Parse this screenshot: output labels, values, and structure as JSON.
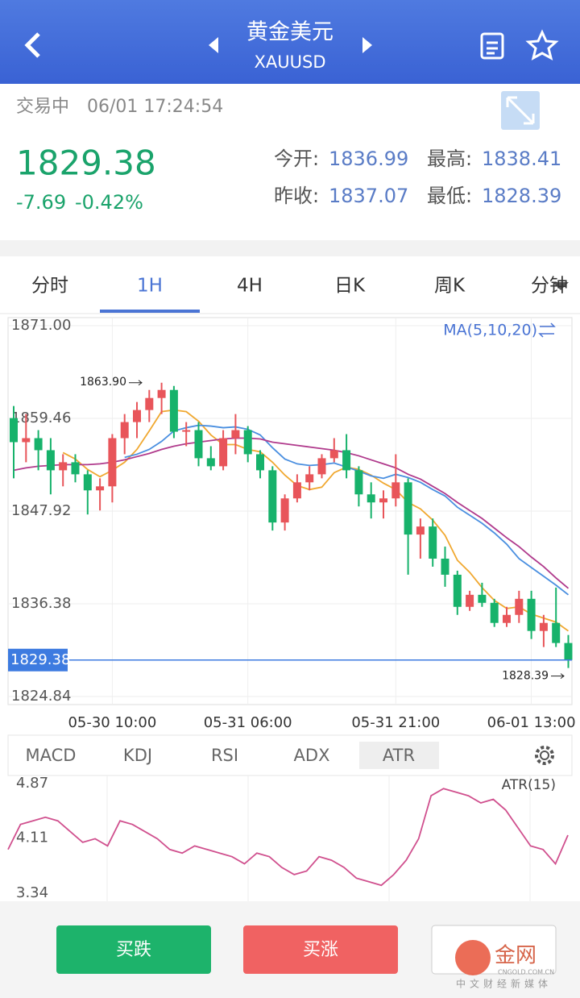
{
  "header": {
    "title": "黄金美元",
    "symbol": "XAUUSD"
  },
  "quote": {
    "status": "交易中",
    "time": "06/01 17:24:54",
    "price": 1829.38,
    "change": -7.69,
    "change_pct": "-0.42%",
    "open_label": "今开:",
    "open": 1836.99,
    "high_label": "最高:",
    "high": 1838.41,
    "prev_close_label": "昨收:",
    "prev_close": 1837.07,
    "low_label": "最低:",
    "low": 1828.39
  },
  "tabs": [
    "分时",
    "1H",
    "4H",
    "日K",
    "周K",
    "分钟"
  ],
  "indicator_tabs": [
    "MACD",
    "KDJ",
    "RSI",
    "ADX",
    "ATR"
  ],
  "chart_data": [
    {
      "type": "candlestick",
      "legend": "MA(5,10,20)",
      "categories": [
        null,
        null,
        null,
        null,
        null,
        null,
        null,
        null,
        "05-30 10:00",
        null,
        null,
        null,
        null,
        null,
        null,
        null,
        null,
        null,
        null,
        "05-31 06:00",
        null,
        null,
        null,
        null,
        null,
        null,
        null,
        null,
        null,
        null,
        null,
        "05-31 21:00",
        null,
        null,
        null,
        null,
        null,
        null,
        null,
        null,
        null,
        null,
        "06-01 13:00",
        null,
        null,
        null
      ],
      "ohlc": [
        [
          1859.5,
          1861,
          1852,
          1856.5
        ],
        [
          1856.5,
          1860,
          1854,
          1857
        ],
        [
          1857,
          1858,
          1853,
          1855.5
        ],
        [
          1855.5,
          1857,
          1850,
          1853
        ],
        [
          1853,
          1855,
          1851,
          1854
        ],
        [
          1854,
          1855,
          1851.5,
          1852.5
        ],
        [
          1852.5,
          1853,
          1847.5,
          1850.5
        ],
        [
          1850.5,
          1852,
          1848,
          1851
        ],
        [
          1851,
          1857.5,
          1849,
          1857
        ],
        [
          1857,
          1860,
          1855,
          1859
        ],
        [
          1859,
          1861.5,
          1857,
          1860.5
        ],
        [
          1860.5,
          1863,
          1859,
          1862
        ],
        [
          1862,
          1863.9,
          1860,
          1863
        ],
        [
          1863,
          1863.5,
          1857,
          1857.8
        ],
        [
          1857.8,
          1859,
          1856,
          1858
        ],
        [
          1858,
          1859,
          1853.5,
          1854.5
        ],
        [
          1854.5,
          1856,
          1853,
          1853.5
        ],
        [
          1853.5,
          1858,
          1853,
          1857
        ],
        [
          1857,
          1860,
          1855,
          1858
        ],
        [
          1858,
          1858.5,
          1854,
          1855
        ],
        [
          1855,
          1855.5,
          1852,
          1853
        ],
        [
          1853,
          1853.5,
          1845.5,
          1846.5
        ],
        [
          1846.5,
          1850,
          1845.5,
          1849.5
        ],
        [
          1849.5,
          1852.5,
          1849,
          1851.5
        ],
        [
          1851.5,
          1853.5,
          1850.5,
          1852.5
        ],
        [
          1852.5,
          1855,
          1852,
          1854.5
        ],
        [
          1854.5,
          1857,
          1854,
          1855.5
        ],
        [
          1855.5,
          1857.5,
          1852,
          1853
        ],
        [
          1853,
          1853.5,
          1848.5,
          1850
        ],
        [
          1850,
          1851.5,
          1847,
          1849
        ],
        [
          1849,
          1850.5,
          1847,
          1849.5
        ],
        [
          1849.5,
          1855,
          1848.5,
          1851.5
        ],
        [
          1851.5,
          1852,
          1840,
          1845
        ],
        [
          1845,
          1847,
          1842,
          1846
        ],
        [
          1846,
          1847,
          1841,
          1842
        ],
        [
          1842,
          1843.5,
          1838.5,
          1840
        ],
        [
          1840,
          1840.5,
          1835,
          1836
        ],
        [
          1836,
          1838,
          1835.5,
          1837.5
        ],
        [
          1837.5,
          1839,
          1836,
          1836.5
        ],
        [
          1836.5,
          1837,
          1833.5,
          1834
        ],
        [
          1834,
          1836,
          1833.5,
          1835
        ],
        [
          1835,
          1838,
          1834,
          1837
        ],
        [
          1837,
          1838,
          1832,
          1833
        ],
        [
          1833,
          1835,
          1831,
          1834
        ],
        [
          1834,
          1838.4,
          1831,
          1831.5
        ],
        [
          1831.5,
          1832.5,
          1828.39,
          1829.38
        ]
      ],
      "up_color": "#e8555a",
      "down_color": "#17b26b",
      "series": [
        {
          "color": "#f0a830",
          "values": [
            null,
            null,
            null,
            null,
            1855.2,
            1854.4,
            1853.1,
            1852.2,
            1853,
            1854,
            1855.6,
            1857.9,
            1860.3,
            1860.5,
            1860.3,
            1859.1,
            1857.4,
            1856.2,
            1856.2,
            1855.6,
            1855.3,
            1854,
            1852.4,
            1851.1,
            1850.6,
            1850.9,
            1852.7,
            1853.4,
            1853.1,
            1852.4,
            1851.4,
            1850.6,
            1849,
            1848.2,
            1846.8,
            1844.9,
            1841.8,
            1840.3,
            1838.4,
            1836.8,
            1835.8,
            1836,
            1835.1,
            1834.6,
            1834.1,
            1833
          ]
        },
        {
          "color": "#4a8fe0",
          "values": [
            null,
            null,
            null,
            null,
            null,
            null,
            null,
            null,
            null,
            1854.6,
            1855,
            1855.6,
            1856.6,
            1857.9,
            1858.3,
            1858.6,
            1858.5,
            1858.3,
            1858.4,
            1858.1,
            1857.4,
            1855.8,
            1854.4,
            1853.8,
            1853.6,
            1853.7,
            1853.9,
            1853.4,
            1852.9,
            1852.3,
            1852,
            1852.5,
            1852.1,
            1851.5,
            1850.6,
            1849.8,
            1848.4,
            1847.4,
            1846.4,
            1845.2,
            1843.8,
            1842,
            1840.9,
            1839.8,
            1838.7,
            1837.5
          ]
        },
        {
          "color": "#b03a8c",
          "values": [
            1853,
            1853.3,
            1853.5,
            1853.6,
            1853.7,
            1853.7,
            1853.7,
            1853.8,
            1854,
            1854.3,
            1854.7,
            1855.1,
            1855.6,
            1856,
            1856.3,
            1856.5,
            1856.7,
            1856.9,
            1857,
            1857,
            1856.9,
            1856.5,
            1856.3,
            1856.1,
            1855.9,
            1855.7,
            1855.5,
            1855.2,
            1854.8,
            1854.3,
            1853.8,
            1853.3,
            1852.5,
            1851.9,
            1851,
            1850.1,
            1849,
            1848,
            1847,
            1845.8,
            1844.6,
            1843.5,
            1842.2,
            1841,
            1839.6,
            1838.3
          ]
        }
      ],
      "ylim": [
        1824.84,
        1871
      ],
      "yticks": [
        {
          "value": 1871,
          "label": "1871.00"
        },
        1859.46,
        1847.92,
        1836.38,
        1824.84
      ],
      "grid": true,
      "last_price": 1829.38,
      "last_price_color": "#3d7be0",
      "max_mark": {
        "value": 1863.9,
        "label": "1863.90"
      },
      "min_mark": 1828.39
    },
    {
      "type": "line",
      "legend": "ATR(15)",
      "color": "#d0508e",
      "values": [
        3.95,
        4.3,
        4.35,
        4.4,
        4.35,
        4.2,
        4.05,
        4.1,
        4.0,
        4.35,
        4.3,
        4.2,
        4.1,
        3.95,
        3.9,
        4.0,
        3.95,
        3.9,
        3.85,
        3.75,
        3.9,
        3.85,
        3.7,
        3.6,
        3.65,
        3.85,
        3.8,
        3.7,
        3.55,
        3.5,
        3.45,
        3.6,
        3.8,
        4.1,
        4.7,
        4.8,
        4.75,
        4.7,
        4.6,
        4.65,
        4.5,
        4.25,
        4.0,
        3.95,
        3.75,
        4.15
      ],
      "ylim": [
        3.34,
        4.87
      ],
      "yticks": [
        4.87,
        4.11,
        3.34
      ]
    }
  ],
  "buttons": {
    "sell": "买跌",
    "buy": "买涨"
  },
  "watermark": {
    "name": "金网",
    "site": "CNGOLD.COM.CN",
    "slogan": "中文财经新媒体"
  }
}
